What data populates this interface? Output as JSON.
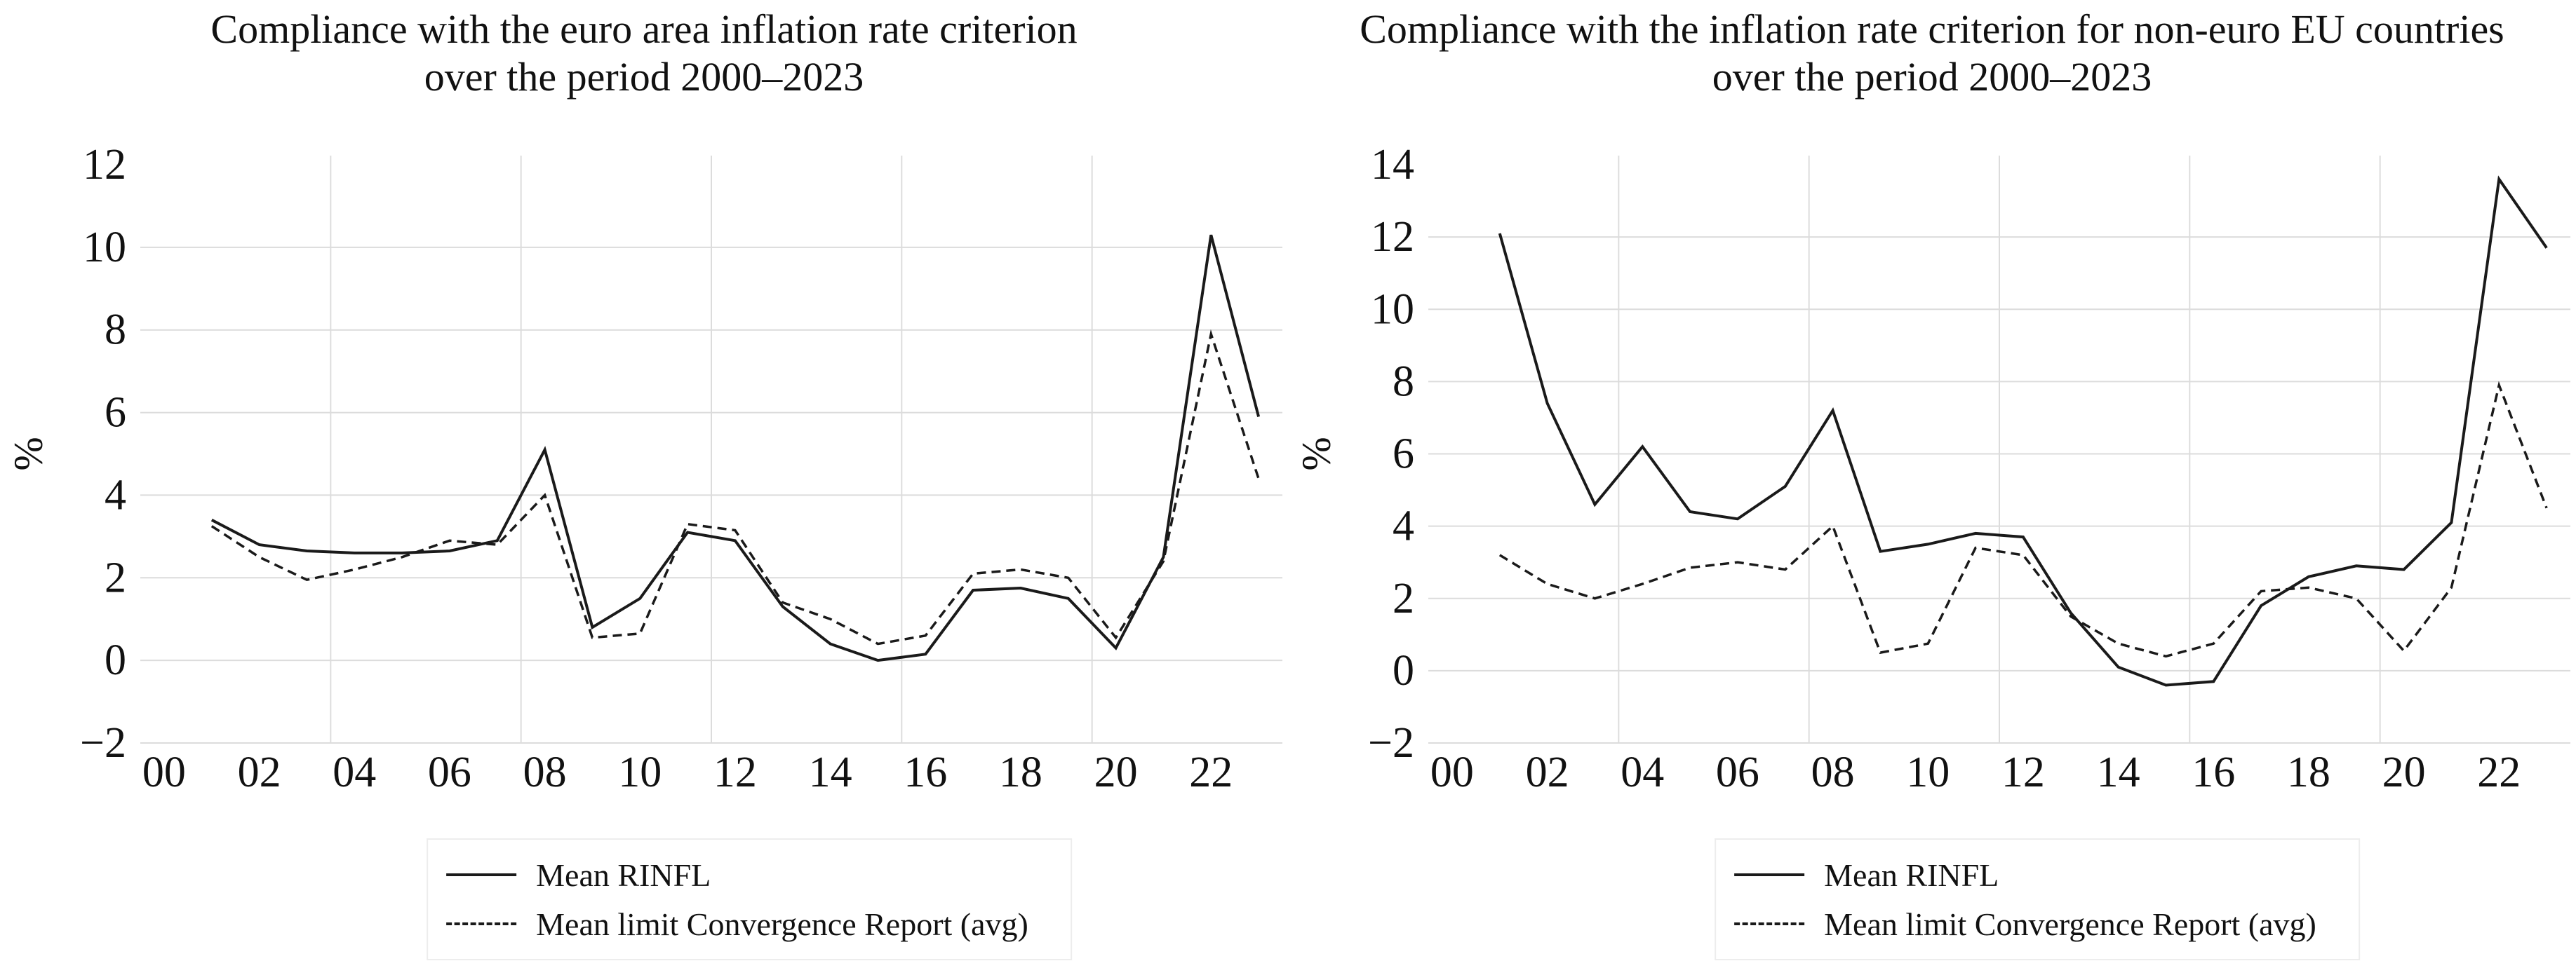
{
  "colors": {
    "series_line": "#1a1a1a",
    "gridline": "#dcdcdc",
    "text": "#111111",
    "legend_border": "#ededed",
    "background": "#ffffff"
  },
  "chart_data": [
    {
      "type": "line",
      "title_line1": "Compliance with the euro area inflation rate criterion",
      "title_line2": "over the period 2000–2023",
      "ylabel": "%",
      "xlabel": "",
      "ylim": [
        -2,
        12
      ],
      "yticks": [
        -2,
        0,
        2,
        4,
        6,
        8,
        10,
        12
      ],
      "xtick_labels": [
        "00",
        "02",
        "04",
        "06",
        "08",
        "10",
        "12",
        "14",
        "16",
        "18",
        "20",
        "22"
      ],
      "xtick_years": [
        2000,
        2002,
        2004,
        2006,
        2008,
        2010,
        2012,
        2014,
        2016,
        2018,
        2020,
        2022
      ],
      "x_axis_span_years": [
        2000,
        2023
      ],
      "vgrid_category_boundaries": [
        4,
        8,
        12,
        16,
        20
      ],
      "grid": true,
      "legend_position": "bottom",
      "x": [
        2001,
        2002,
        2003,
        2004,
        2005,
        2006,
        2007,
        2008,
        2009,
        2010,
        2011,
        2012,
        2013,
        2014,
        2015,
        2016,
        2017,
        2018,
        2019,
        2020,
        2021,
        2022,
        2023
      ],
      "series": [
        {
          "name": "Mean RINFL",
          "style": "solid",
          "values": [
            3.4,
            2.8,
            2.65,
            2.6,
            2.6,
            2.65,
            2.9,
            5.1,
            0.8,
            1.5,
            3.1,
            2.9,
            1.3,
            0.4,
            0.0,
            0.15,
            1.7,
            1.75,
            1.5,
            0.3,
            2.5,
            10.3,
            5.9
          ]
        },
        {
          "name": "Mean limit Convergence Report (avg)",
          "style": "dashed",
          "values": [
            3.25,
            2.5,
            1.95,
            2.2,
            2.5,
            2.9,
            2.8,
            4.0,
            0.55,
            0.65,
            3.3,
            3.15,
            1.4,
            1.0,
            0.4,
            0.6,
            2.1,
            2.2,
            2.0,
            0.55,
            2.4,
            7.9,
            4.4
          ]
        }
      ]
    },
    {
      "type": "line",
      "title_line1": "Compliance with the inflation rate criterion for non-euro EU countries",
      "title_line2": "over the period 2000–2023",
      "ylabel": "%",
      "xlabel": "",
      "ylim": [
        -2,
        14
      ],
      "yticks": [
        -2,
        0,
        2,
        4,
        6,
        8,
        10,
        12,
        14
      ],
      "xtick_labels": [
        "00",
        "02",
        "04",
        "06",
        "08",
        "10",
        "12",
        "14",
        "16",
        "18",
        "20",
        "22"
      ],
      "xtick_years": [
        2000,
        2002,
        2004,
        2006,
        2008,
        2010,
        2012,
        2014,
        2016,
        2018,
        2020,
        2022
      ],
      "x_axis_span_years": [
        2000,
        2023
      ],
      "vgrid_category_boundaries": [
        4,
        8,
        12,
        16,
        20
      ],
      "grid": true,
      "legend_position": "bottom",
      "x": [
        2001,
        2002,
        2003,
        2004,
        2005,
        2006,
        2007,
        2008,
        2009,
        2010,
        2011,
        2012,
        2013,
        2014,
        2015,
        2016,
        2017,
        2018,
        2019,
        2020,
        2021,
        2022,
        2023
      ],
      "series": [
        {
          "name": "Mean RINFL",
          "style": "solid",
          "values": [
            12.1,
            7.4,
            4.6,
            6.2,
            4.4,
            4.2,
            5.1,
            7.2,
            3.3,
            3.5,
            3.8,
            3.7,
            1.6,
            0.1,
            -0.4,
            -0.3,
            1.8,
            2.6,
            2.9,
            2.8,
            4.1,
            13.6,
            11.7
          ]
        },
        {
          "name": "Mean limit Convergence Report (avg)",
          "style": "dashed",
          "values": [
            3.2,
            2.4,
            2.0,
            2.4,
            2.85,
            3.0,
            2.8,
            4.0,
            0.5,
            0.75,
            3.4,
            3.2,
            1.5,
            0.75,
            0.4,
            0.75,
            2.2,
            2.3,
            2.0,
            0.55,
            2.3,
            7.9,
            4.5
          ]
        }
      ]
    }
  ]
}
